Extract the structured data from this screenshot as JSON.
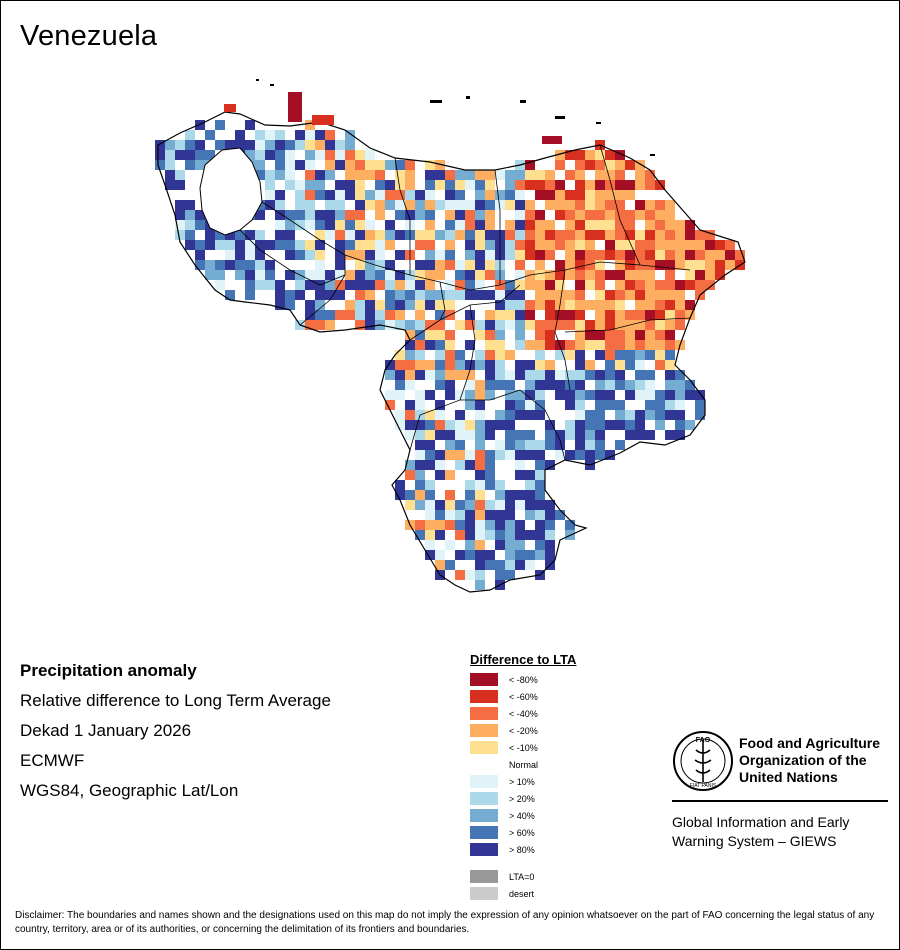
{
  "title": "Venezuela",
  "info": {
    "heading": "Precipitation anomaly",
    "line1": "Relative difference to Long Term Average",
    "line2": "Dekad 1 January 2026",
    "line3": "ECMWF",
    "line4": "WGS84, Geographic Lat/Lon"
  },
  "legend": {
    "title": "Difference to LTA",
    "items": [
      {
        "label": "< -80%",
        "color": "#a50f26"
      },
      {
        "label": "< -60%",
        "color": "#d7301f"
      },
      {
        "label": "< -40%",
        "color": "#f46d43"
      },
      {
        "label": "< -20%",
        "color": "#fdae61"
      },
      {
        "label": "< -10%",
        "color": "#fee090"
      },
      {
        "label": "Normal",
        "color": "#ffffff"
      },
      {
        "label": "> 10%",
        "color": "#e0f3f8"
      },
      {
        "label": "> 20%",
        "color": "#abd9e9"
      },
      {
        "label": "> 40%",
        "color": "#74add1"
      },
      {
        "label": "> 60%",
        "color": "#4575b4"
      },
      {
        "label": "> 80%",
        "color": "#313695"
      }
    ],
    "extra": [
      {
        "label": "LTA=0",
        "color": "#999999"
      },
      {
        "label": "desert",
        "color": "#cccccc"
      }
    ]
  },
  "org": {
    "line1": "Food and Agriculture",
    "line2": "Organization of the",
    "line3": "United Nations",
    "logo_text": "FAO",
    "logo_motto": "FIAT PANIS",
    "giews1": "Global Information and Early",
    "giews2": "Warning System – GIEWS"
  },
  "disclaimer": "Disclaimer: The boundaries and names shown and the designations used on this map do not imply the expression of any opinion whatsoever on the part of FAO concerning the legal status of any country, territory, area or of its authorities, or concerning the delimitation of its frontiers and boundaries."
}
